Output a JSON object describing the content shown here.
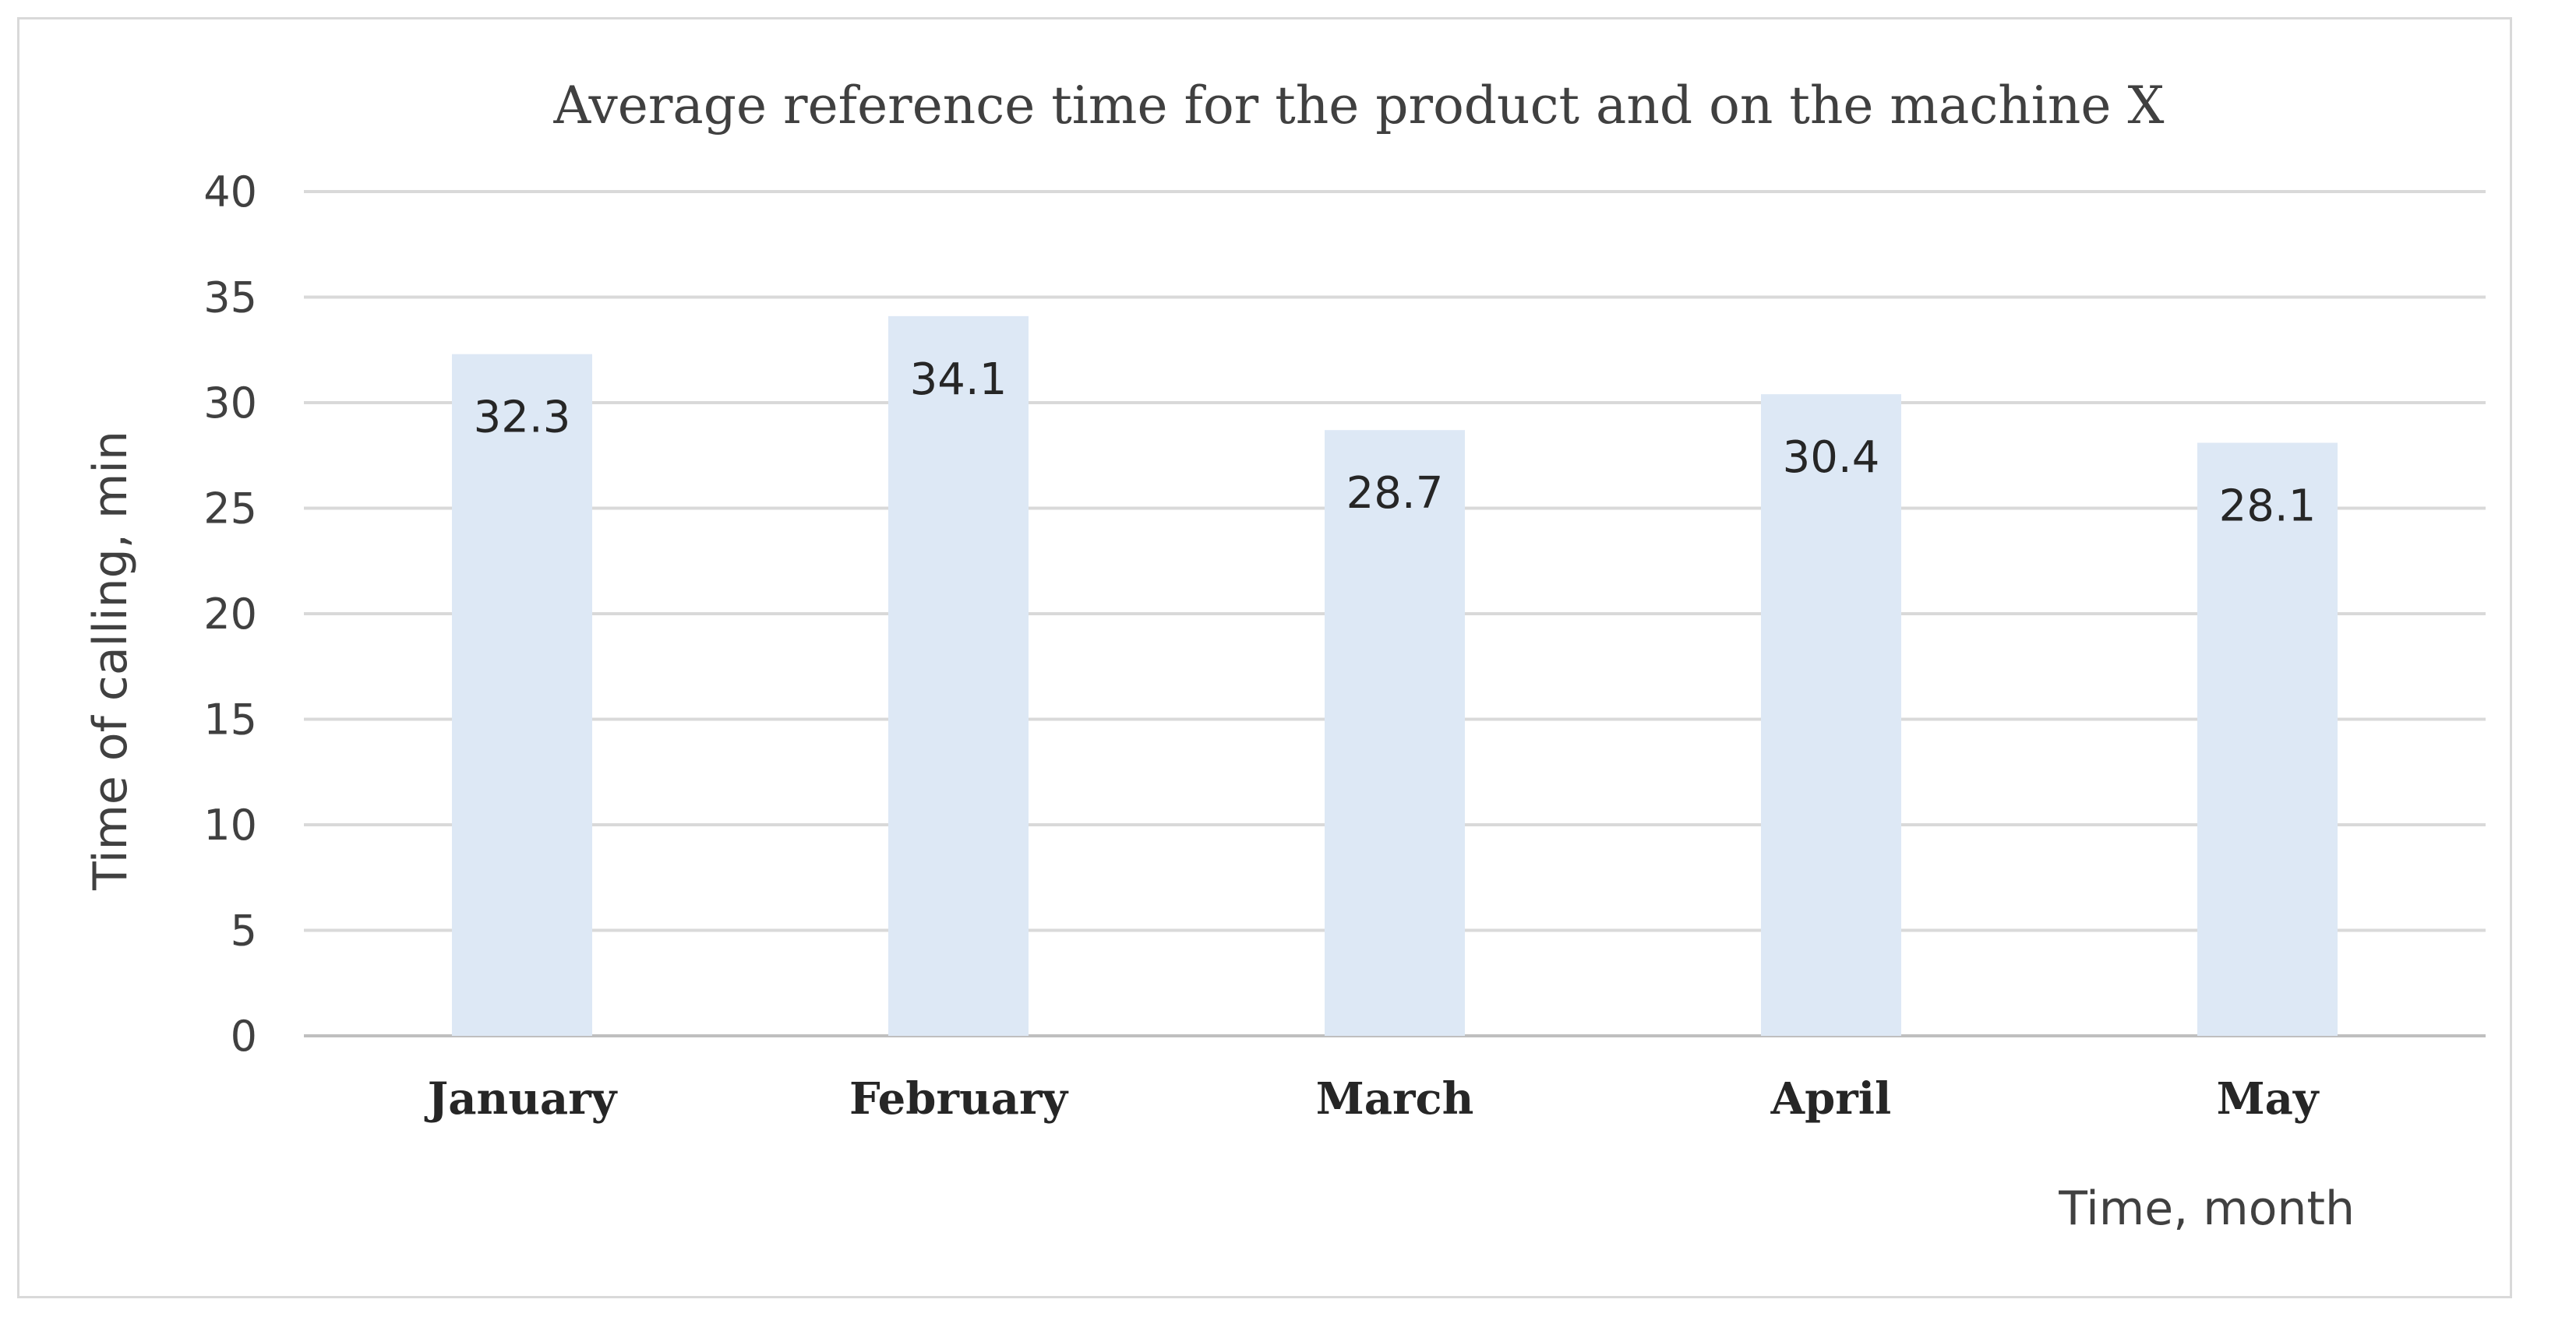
{
  "chart_data": {
    "type": "bar",
    "title": "Average reference time for the product and on the machine X",
    "xlabel": "Time, month",
    "ylabel": "Time of calling, min",
    "categories": [
      "January",
      "February",
      "March",
      "April",
      "May"
    ],
    "values": [
      32.3,
      34.1,
      28.7,
      30.4,
      28.1
    ],
    "data_labels": [
      "32.3",
      "34.1",
      "28.7",
      "30.4",
      "28.1"
    ],
    "ylim": [
      0,
      40
    ],
    "yticks": [
      0,
      5,
      10,
      15,
      20,
      25,
      30,
      35,
      40
    ],
    "grid": true,
    "legend": "none",
    "bar_color": "#dde8f5",
    "grid_color": "#d9d9d9"
  }
}
